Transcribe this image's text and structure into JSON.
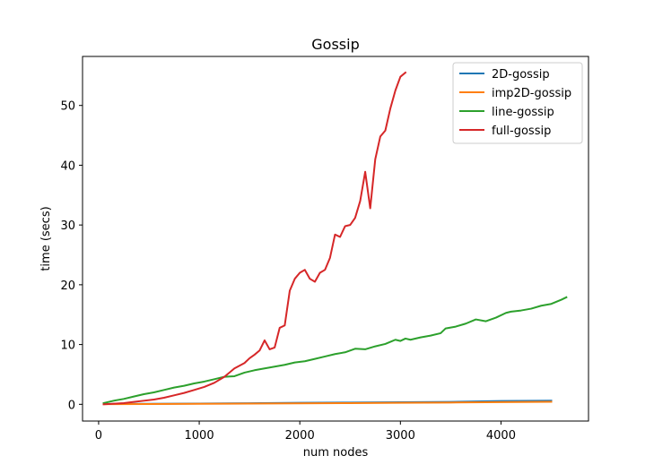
{
  "chart_data": {
    "type": "line",
    "title": "Gossip",
    "xlabel": "num nodes",
    "ylabel": "time (secs)",
    "xlim": [
      -160,
      4870
    ],
    "ylim": [
      -2.8,
      58.2
    ],
    "xticks": [
      0,
      1000,
      2000,
      3000,
      4000
    ],
    "yticks": [
      0,
      10,
      20,
      30,
      40,
      50
    ],
    "grid": false,
    "legend": "top-right",
    "series": [
      {
        "name": "2D-gossip",
        "color": "#1f77b4",
        "x": [
          50,
          500,
          1000,
          1500,
          2000,
          2500,
          3000,
          3500,
          4000,
          4500
        ],
        "y": [
          0.05,
          0.08,
          0.12,
          0.18,
          0.25,
          0.3,
          0.35,
          0.4,
          0.55,
          0.6
        ]
      },
      {
        "name": "imp2D-gossip",
        "color": "#ff7f0e",
        "x": [
          50,
          500,
          1000,
          1500,
          2000,
          2500,
          3000,
          3500,
          4000,
          4500
        ],
        "y": [
          0.02,
          0.05,
          0.08,
          0.12,
          0.16,
          0.2,
          0.25,
          0.3,
          0.36,
          0.42
        ]
      },
      {
        "name": "line-gossip",
        "color": "#2ca02c",
        "x": [
          50,
          150,
          250,
          350,
          450,
          550,
          650,
          750,
          850,
          950,
          1050,
          1150,
          1250,
          1350,
          1450,
          1550,
          1650,
          1750,
          1850,
          1950,
          2050,
          2150,
          2250,
          2350,
          2450,
          2550,
          2650,
          2750,
          2850,
          2950,
          3000,
          3050,
          3100,
          3200,
          3300,
          3400,
          3450,
          3550,
          3650,
          3750,
          3850,
          3950,
          4050,
          4100,
          4200,
          4300,
          4400,
          4500,
          4600,
          4650
        ],
        "y": [
          0.2,
          0.6,
          0.9,
          1.3,
          1.7,
          2.0,
          2.4,
          2.8,
          3.1,
          3.5,
          3.8,
          4.2,
          4.6,
          4.7,
          5.3,
          5.7,
          6.0,
          6.3,
          6.6,
          7.0,
          7.2,
          7.6,
          8.0,
          8.4,
          8.7,
          9.3,
          9.2,
          9.7,
          10.1,
          10.8,
          10.6,
          11.0,
          10.8,
          11.2,
          11.5,
          11.9,
          12.7,
          13.0,
          13.5,
          14.2,
          13.9,
          14.5,
          15.3,
          15.5,
          15.7,
          16.0,
          16.5,
          16.8,
          17.5,
          17.9
        ]
      },
      {
        "name": "full-gossip",
        "color": "#d62728",
        "x": [
          50,
          150,
          250,
          350,
          450,
          550,
          650,
          750,
          850,
          950,
          1050,
          1150,
          1250,
          1350,
          1450,
          1500,
          1550,
          1600,
          1650,
          1700,
          1750,
          1800,
          1850,
          1900,
          1950,
          2000,
          2050,
          2100,
          2150,
          2200,
          2250,
          2300,
          2350,
          2400,
          2450,
          2500,
          2550,
          2600,
          2650,
          2700,
          2750,
          2800,
          2850,
          2900,
          2950,
          3000,
          3050
        ],
        "y": [
          0.0,
          0.1,
          0.2,
          0.4,
          0.6,
          0.8,
          1.1,
          1.5,
          1.9,
          2.4,
          2.9,
          3.6,
          4.6,
          6.0,
          6.9,
          7.7,
          8.3,
          9.0,
          10.7,
          9.2,
          9.5,
          12.8,
          13.2,
          19.0,
          21.0,
          22.0,
          22.5,
          21.0,
          20.5,
          22.0,
          22.5,
          24.5,
          28.4,
          28.0,
          29.8,
          30.0,
          31.2,
          34.0,
          38.9,
          32.8,
          41.0,
          44.8,
          45.8,
          49.5,
          52.5,
          54.8,
          55.5
        ]
      }
    ]
  }
}
